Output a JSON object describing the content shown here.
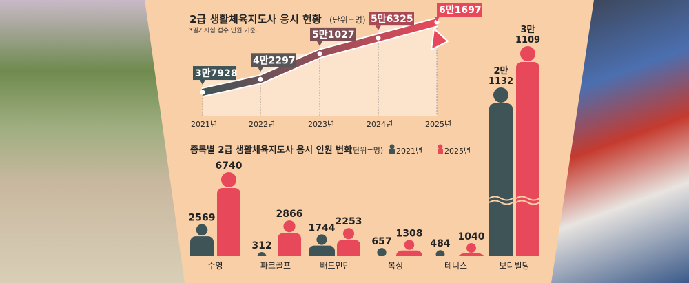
{
  "colors": {
    "dark": "#3f5456",
    "red": "#e8495a",
    "panel": "#f9cfa7"
  },
  "chart_data": [
    {
      "type": "line",
      "title": "2급 생활체육지도사 응시 현황",
      "unit": "(단위=명)",
      "note": "*필기시험 접수 인원 기준.",
      "categories": [
        "2021년",
        "2022년",
        "2023년",
        "2024년",
        "2025년"
      ],
      "values": [
        37928,
        42297,
        51027,
        56325,
        61697
      ],
      "labels": [
        "3만7928",
        "4만2297",
        "5만1027",
        "5만6325",
        "6만1697"
      ]
    },
    {
      "type": "bar",
      "title": "종목별 2급 생활체육지도사 응시 인원 변화",
      "unit": "(단위=명)",
      "legend": [
        "2021년",
        "2025년"
      ],
      "categories": [
        "수영",
        "파크골프",
        "배드민턴",
        "복싱",
        "테니스",
        "보디빌딩"
      ],
      "series": [
        {
          "name": "2021년",
          "values": [
            2569,
            312,
            1744,
            657,
            484,
            21132
          ],
          "labels": [
            "2569",
            "312",
            "1744",
            "657",
            "484",
            "2만\n1132"
          ]
        },
        {
          "name": "2025년",
          "values": [
            6740,
            2866,
            2253,
            1308,
            1040,
            31109
          ],
          "labels": [
            "6740",
            "2866",
            "2253",
            "1308",
            "1040",
            "3만\n1109"
          ]
        }
      ]
    }
  ]
}
